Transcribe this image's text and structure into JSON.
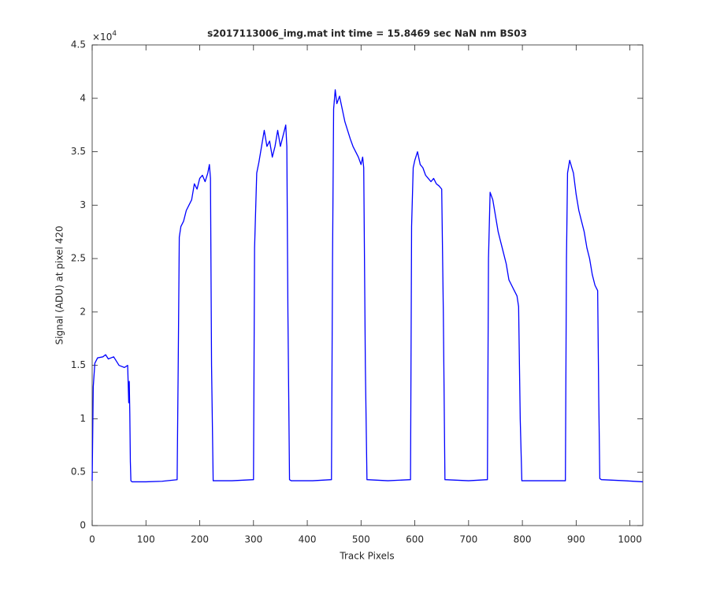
{
  "chart_data": {
    "type": "line",
    "title": "s2017113006_img.mat int time = 15.8469 sec  NaN nm BS03",
    "xlabel": "Track Pixels",
    "ylabel": "Signal (ADU) at pixel 420",
    "y_multiplier": "×10",
    "y_multiplier_exponent": "4",
    "color": "#0000ff",
    "xlim": [
      0,
      1024
    ],
    "ylim": [
      0,
      4.5
    ],
    "xticks": [
      0,
      100,
      200,
      300,
      400,
      500,
      600,
      700,
      800,
      900,
      1000
    ],
    "yticks": [
      0,
      0.5,
      1,
      1.5,
      2,
      2.5,
      3,
      3.5,
      4,
      4.5
    ],
    "grid": false,
    "x": [
      0,
      2,
      5,
      10,
      20,
      25,
      30,
      40,
      50,
      60,
      66,
      68,
      69,
      70,
      71,
      72,
      74,
      100,
      130,
      158,
      160,
      162,
      165,
      170,
      175,
      180,
      185,
      190,
      195,
      200,
      205,
      210,
      215,
      218,
      220,
      222,
      225,
      260,
      300,
      302,
      306,
      310,
      315,
      320,
      325,
      330,
      335,
      340,
      345,
      350,
      355,
      360,
      362,
      364,
      367,
      370,
      410,
      445,
      447,
      449,
      452,
      455,
      460,
      465,
      470,
      475,
      480,
      485,
      490,
      495,
      500,
      503,
      505,
      508,
      511,
      550,
      592,
      594,
      597,
      600,
      605,
      610,
      615,
      620,
      625,
      630,
      635,
      640,
      645,
      650,
      653,
      656,
      700,
      735,
      737,
      740,
      745,
      750,
      755,
      760,
      765,
      770,
      775,
      780,
      785,
      790,
      793,
      796,
      799,
      840,
      880,
      882,
      884,
      888,
      892,
      895,
      900,
      905,
      910,
      915,
      920,
      925,
      930,
      935,
      940,
      942,
      944,
      947,
      990,
      1024
    ],
    "values": [
      0.42,
      1.3,
      1.52,
      1.57,
      1.58,
      1.6,
      1.56,
      1.58,
      1.5,
      1.48,
      1.5,
      1.15,
      1.35,
      1.05,
      0.6,
      0.42,
      0.41,
      0.41,
      0.415,
      0.43,
      1.5,
      2.7,
      2.8,
      2.85,
      2.95,
      3.0,
      3.05,
      3.2,
      3.15,
      3.25,
      3.28,
      3.22,
      3.3,
      3.38,
      3.25,
      1.5,
      0.42,
      0.42,
      0.43,
      2.6,
      3.3,
      3.4,
      3.55,
      3.7,
      3.55,
      3.6,
      3.45,
      3.55,
      3.7,
      3.55,
      3.65,
      3.75,
      3.55,
      2.0,
      0.43,
      0.42,
      0.42,
      0.43,
      2.5,
      3.9,
      4.08,
      3.95,
      4.02,
      3.9,
      3.78,
      3.7,
      3.62,
      3.55,
      3.5,
      3.45,
      3.38,
      3.45,
      3.35,
      1.5,
      0.43,
      0.42,
      0.43,
      2.8,
      3.35,
      3.42,
      3.5,
      3.38,
      3.35,
      3.28,
      3.25,
      3.22,
      3.25,
      3.2,
      3.18,
      3.15,
      2.0,
      0.43,
      0.42,
      0.43,
      2.5,
      3.12,
      3.05,
      2.9,
      2.75,
      2.65,
      2.55,
      2.45,
      2.3,
      2.25,
      2.2,
      2.15,
      2.05,
      1.0,
      0.42,
      0.42,
      0.42,
      2.5,
      3.3,
      3.42,
      3.35,
      3.3,
      3.1,
      2.95,
      2.85,
      2.75,
      2.6,
      2.5,
      2.35,
      2.25,
      2.2,
      1.2,
      0.44,
      0.43,
      0.42,
      0.41
    ]
  }
}
